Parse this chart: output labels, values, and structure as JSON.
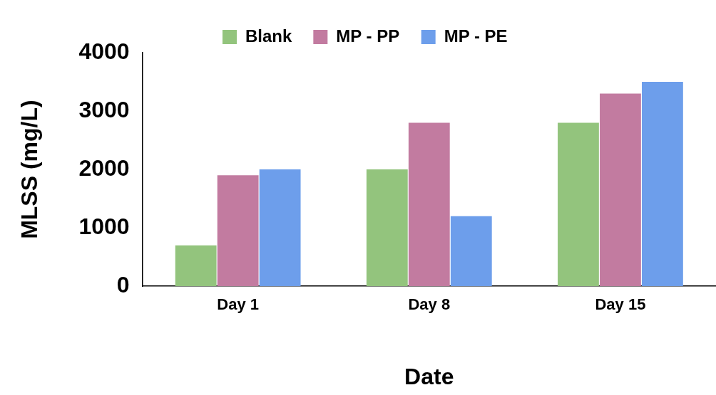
{
  "chart_data": {
    "type": "bar",
    "xlabel": "Date",
    "ylabel": "MLSS (mg/L)",
    "categories": [
      "Day 1",
      "Day 8",
      "Day 15"
    ],
    "series": [
      {
        "name": "Blank",
        "color": "#93c47d",
        "values": [
          700,
          2000,
          2800
        ]
      },
      {
        "name": "MP - PP",
        "color": "#c27ba0",
        "values": [
          1900,
          2800,
          3300
        ]
      },
      {
        "name": "MP - PE",
        "color": "#6d9eeb",
        "values": [
          2000,
          1200,
          3500
        ]
      }
    ],
    "ylim": [
      0,
      4000
    ],
    "yticks": [
      0,
      1000,
      2000,
      3000,
      4000
    ],
    "grid": false,
    "legend": "top"
  }
}
